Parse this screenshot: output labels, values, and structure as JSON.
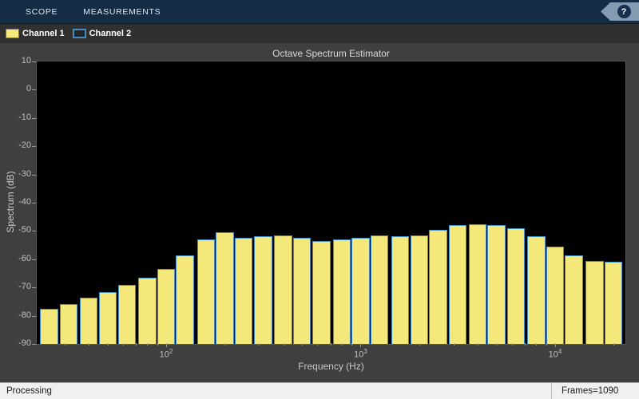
{
  "toolbar": {
    "tabs": [
      {
        "label": "SCOPE"
      },
      {
        "label": "MEASUREMENTS"
      }
    ],
    "help_label": "?"
  },
  "legend": {
    "items": [
      {
        "label": "Channel 1"
      },
      {
        "label": "Channel 2"
      }
    ]
  },
  "chart_data": {
    "type": "bar",
    "title": "Octave Spectrum Estimator",
    "xlabel": "Frequency (Hz)",
    "ylabel": "Spectrum (dB)",
    "x_scale": "log",
    "grid": false,
    "background": "#000000",
    "xlim": [
      21.6,
      23000
    ],
    "ylim": [
      -90,
      10
    ],
    "y_ticks": [
      10,
      0,
      -10,
      -20,
      -30,
      -40,
      -50,
      -60,
      -70,
      -80,
      -90
    ],
    "x_ticks": [
      {
        "value": 100,
        "base": "10",
        "exp": "2"
      },
      {
        "value": 1000,
        "base": "10",
        "exp": "3"
      },
      {
        "value": 10000,
        "base": "10",
        "exp": "4"
      }
    ],
    "categories": [
      25,
      31.5,
      40,
      50,
      63,
      80,
      100,
      125,
      160,
      200,
      250,
      315,
      400,
      500,
      630,
      800,
      1000,
      1250,
      1600,
      2000,
      2500,
      3150,
      4000,
      5000,
      6300,
      8000,
      10000,
      12500,
      16000,
      20000
    ],
    "series": [
      {
        "name": "Channel 1",
        "style": "filled",
        "color": "#f5e87a",
        "values": [
          -77.5,
          -76,
          -73.5,
          -71.5,
          -69,
          -66.5,
          -63.5,
          -58.5,
          -53,
          -50.5,
          -52.5,
          -52,
          -51.5,
          -52.5,
          -53.5,
          -53,
          -52.5,
          -51.5,
          -52,
          -51.5,
          -49.5,
          -48,
          -47.5,
          -48,
          -49,
          -52,
          -55.5,
          -58.5,
          -60.5,
          -61
        ]
      },
      {
        "name": "Channel 2",
        "style": "outline",
        "color": "#3f8fc5",
        "values": [
          -77.5,
          -76,
          -73.5,
          -71.5,
          -69,
          -66.5,
          -63.5,
          -58.5,
          -53,
          -50.5,
          -52.5,
          -52,
          -51.5,
          -52.5,
          -53.5,
          -53,
          -52.5,
          -51.5,
          -52,
          -51.5,
          -49.5,
          -48,
          -47.5,
          -48,
          -49,
          -52,
          -55.5,
          -58.5,
          -60.5,
          -61
        ]
      }
    ]
  },
  "statusbar": {
    "left": "Processing",
    "right": "Frames=1090"
  }
}
